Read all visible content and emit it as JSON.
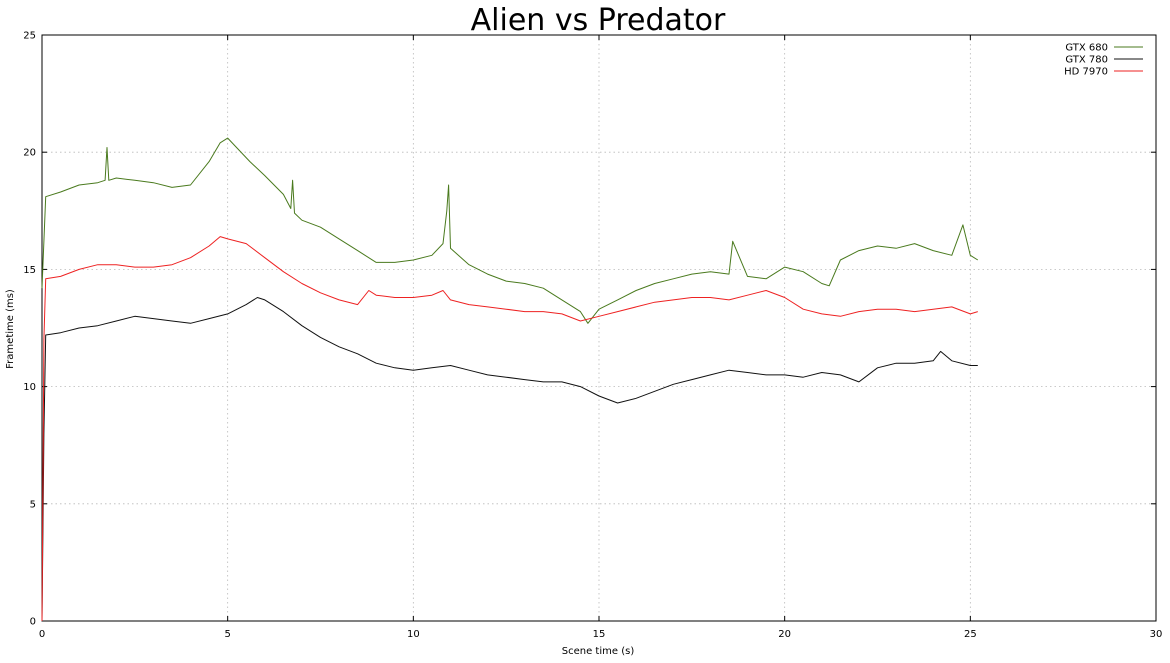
{
  "chart_data": {
    "type": "line",
    "title": "Alien vs Predator",
    "xlabel": "Scene time (s)",
    "ylabel": "Frametime (ms)",
    "xlim": [
      0,
      30
    ],
    "ylim": [
      0,
      25
    ],
    "xticks": [
      0,
      5,
      10,
      15,
      20,
      25,
      30
    ],
    "yticks": [
      0,
      5,
      10,
      15,
      20,
      25
    ],
    "xtick_labels": [
      "0",
      "5",
      "10",
      "15",
      "20",
      "25",
      "30"
    ],
    "ytick_labels": [
      "0",
      "5",
      "10",
      "15",
      "20",
      "25"
    ],
    "grid": true,
    "legend_position": "top-right",
    "series": [
      {
        "name": "GTX 680",
        "color": "#4a7a1e",
        "x": [
          0.0,
          0.1,
          0.5,
          1.0,
          1.5,
          1.7,
          1.75,
          1.8,
          2.0,
          2.5,
          3.0,
          3.5,
          4.0,
          4.5,
          4.8,
          5.0,
          5.3,
          5.6,
          6.0,
          6.5,
          6.7,
          6.75,
          6.8,
          7.0,
          7.5,
          8.0,
          8.5,
          9.0,
          9.5,
          10.0,
          10.5,
          10.8,
          10.9,
          10.95,
          11.0,
          11.5,
          12.0,
          12.5,
          13.0,
          13.5,
          14.0,
          14.5,
          14.7,
          15.0,
          15.5,
          16.0,
          16.5,
          17.0,
          17.5,
          18.0,
          18.5,
          18.6,
          19.0,
          19.5,
          20.0,
          20.5,
          21.0,
          21.2,
          21.5,
          22.0,
          22.5,
          23.0,
          23.5,
          24.0,
          24.5,
          24.8,
          25.0,
          25.2
        ],
        "values": [
          14.2,
          18.1,
          18.3,
          18.6,
          18.7,
          18.8,
          20.2,
          18.8,
          18.9,
          18.8,
          18.7,
          18.5,
          18.6,
          19.6,
          20.4,
          20.6,
          20.1,
          19.6,
          19.0,
          18.2,
          17.6,
          18.8,
          17.4,
          17.1,
          16.8,
          16.3,
          15.8,
          15.3,
          15.3,
          15.4,
          15.6,
          16.1,
          17.5,
          18.6,
          15.9,
          15.2,
          14.8,
          14.5,
          14.4,
          14.2,
          13.7,
          13.2,
          12.7,
          13.3,
          13.7,
          14.1,
          14.4,
          14.6,
          14.8,
          14.9,
          14.8,
          16.2,
          14.7,
          14.6,
          15.1,
          14.9,
          14.4,
          14.3,
          15.4,
          15.8,
          16.0,
          15.9,
          16.1,
          15.8,
          15.6,
          16.9,
          15.6,
          15.4
        ]
      },
      {
        "name": "GTX 780",
        "color": "#111111",
        "x": [
          0.0,
          0.05,
          0.1,
          0.5,
          1.0,
          1.5,
          2.0,
          2.5,
          3.0,
          3.5,
          4.0,
          4.5,
          5.0,
          5.5,
          5.8,
          6.0,
          6.5,
          7.0,
          7.5,
          8.0,
          8.5,
          9.0,
          9.5,
          10.0,
          10.5,
          11.0,
          11.5,
          12.0,
          12.5,
          13.0,
          13.5,
          14.0,
          14.5,
          15.0,
          15.5,
          16.0,
          16.5,
          17.0,
          17.5,
          18.0,
          18.5,
          19.0,
          19.5,
          20.0,
          20.5,
          21.0,
          21.5,
          22.0,
          22.5,
          23.0,
          23.5,
          24.0,
          24.2,
          24.5,
          25.0,
          25.2
        ],
        "values": [
          0.0,
          8.0,
          12.2,
          12.3,
          12.5,
          12.6,
          12.8,
          13.0,
          12.9,
          12.8,
          12.7,
          12.9,
          13.1,
          13.5,
          13.8,
          13.7,
          13.2,
          12.6,
          12.1,
          11.7,
          11.4,
          11.0,
          10.8,
          10.7,
          10.8,
          10.9,
          10.7,
          10.5,
          10.4,
          10.3,
          10.2,
          10.2,
          10.0,
          9.6,
          9.3,
          9.5,
          9.8,
          10.1,
          10.3,
          10.5,
          10.7,
          10.6,
          10.5,
          10.5,
          10.4,
          10.6,
          10.5,
          10.2,
          10.8,
          11.0,
          11.0,
          11.1,
          11.5,
          11.1,
          10.9,
          10.9
        ]
      },
      {
        "name": "HD 7970",
        "color": "#ee2222",
        "x": [
          0.0,
          0.05,
          0.1,
          0.5,
          1.0,
          1.5,
          2.0,
          2.5,
          3.0,
          3.5,
          4.0,
          4.5,
          4.8,
          5.0,
          5.5,
          6.0,
          6.5,
          7.0,
          7.5,
          8.0,
          8.5,
          8.8,
          9.0,
          9.5,
          10.0,
          10.5,
          10.8,
          11.0,
          11.5,
          12.0,
          12.5,
          13.0,
          13.5,
          14.0,
          14.5,
          15.0,
          15.5,
          16.0,
          16.5,
          17.0,
          17.5,
          18.0,
          18.5,
          19.0,
          19.5,
          20.0,
          20.5,
          21.0,
          21.5,
          22.0,
          22.5,
          23.0,
          23.5,
          24.0,
          24.5,
          25.0,
          25.2
        ],
        "values": [
          0.0,
          12.0,
          14.6,
          14.7,
          15.0,
          15.2,
          15.2,
          15.1,
          15.1,
          15.2,
          15.5,
          16.0,
          16.4,
          16.3,
          16.1,
          15.5,
          14.9,
          14.4,
          14.0,
          13.7,
          13.5,
          14.1,
          13.9,
          13.8,
          13.8,
          13.9,
          14.1,
          13.7,
          13.5,
          13.4,
          13.3,
          13.2,
          13.2,
          13.1,
          12.8,
          13.0,
          13.2,
          13.4,
          13.6,
          13.7,
          13.8,
          13.8,
          13.7,
          13.9,
          14.1,
          13.8,
          13.3,
          13.1,
          13.0,
          13.2,
          13.3,
          13.3,
          13.2,
          13.3,
          13.4,
          13.1,
          13.2
        ]
      }
    ]
  }
}
